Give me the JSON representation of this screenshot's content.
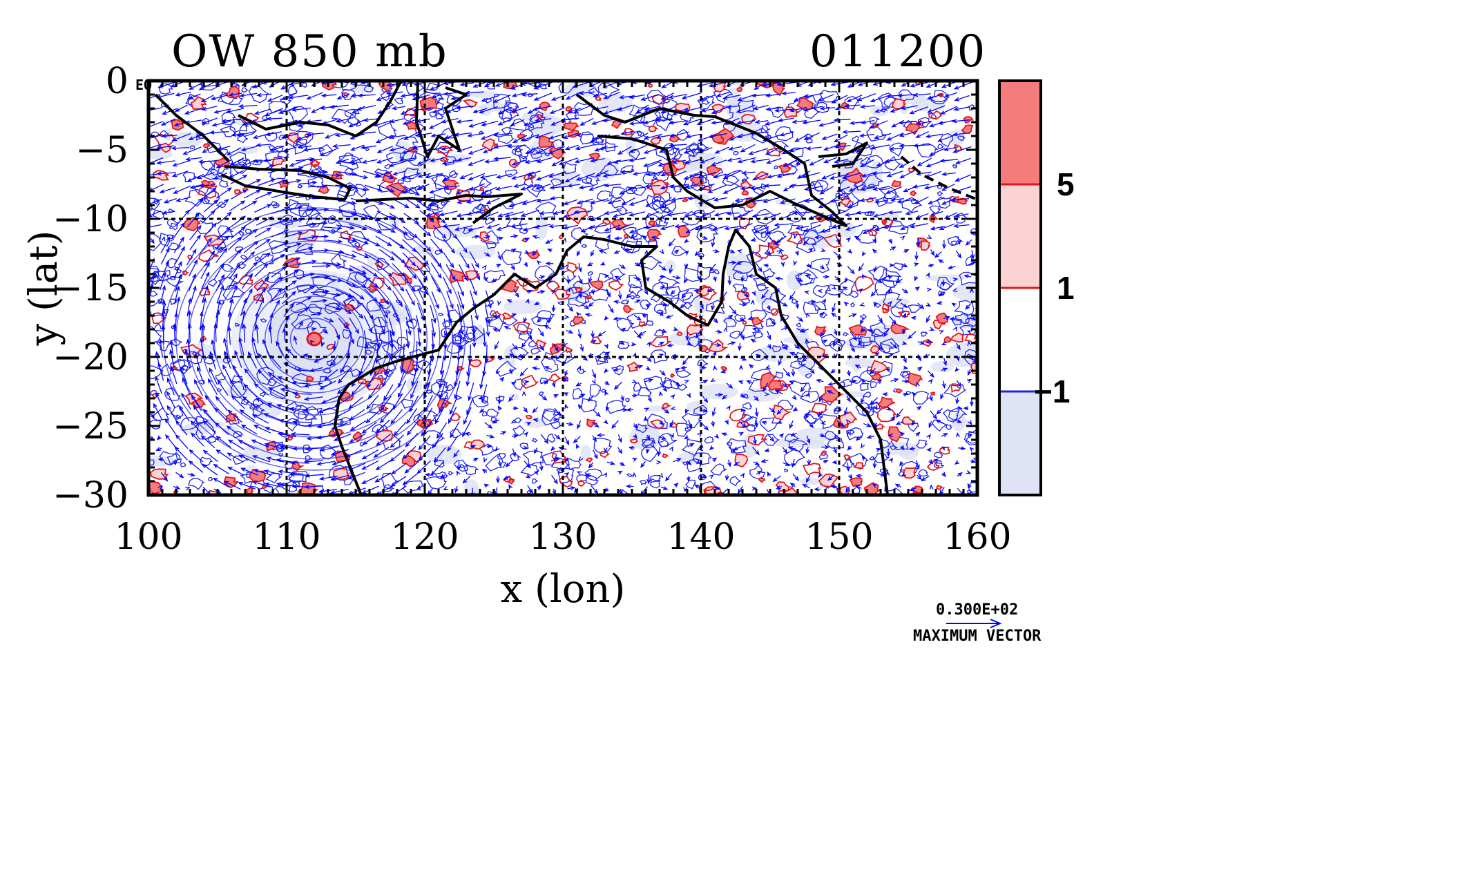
{
  "title_left": "OW 850 mb",
  "title_right": "011200",
  "map_data": {
    "x_axis": {
      "label": "x (lon)",
      "ticks": [
        "100",
        "110",
        "120",
        "130",
        "140",
        "150",
        "160"
      ],
      "range": [
        100,
        160
      ]
    },
    "y_axis": {
      "label": "y (lat)",
      "ticks": [
        "0",
        "−5",
        "−10",
        "−15",
        "−20",
        "−25",
        "−30"
      ],
      "range": [
        -30,
        0
      ]
    },
    "corner_label": "EQ",
    "colorbar": {
      "levels": [
        "5",
        "1",
        "−1"
      ],
      "colors": [
        "#f47c7c",
        "#fbd3d3",
        "#ffffff",
        "#dfe3f5"
      ]
    },
    "vector_legend": {
      "magnitude": "0.300E+02",
      "label": "MAXIMUM VECTOR",
      "color": "#0000ff"
    },
    "positive_contour_color": "#e0171a",
    "negative_contour_color": "#1f22e8",
    "negative_fill_color": "#dde1f6",
    "cyclone_center": {
      "lon": 112,
      "lat": -18.7
    },
    "grid": "on"
  }
}
